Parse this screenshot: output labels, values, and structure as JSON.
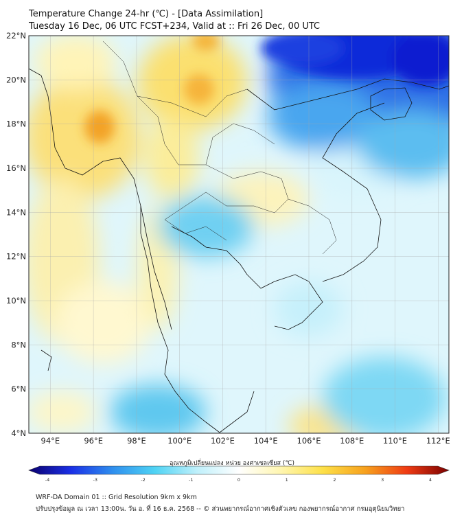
{
  "header": {
    "title_line1": "Temperature Change 24-hr (℃) - [Data Assimilation]",
    "title_line2": "Tuesday 16 Dec, 06 UTC FCST+234, Valid at :: Fri 26 Dec, 00 UTC"
  },
  "map": {
    "lat_labels": [
      "22°N",
      "20°N",
      "18°N",
      "16°N",
      "14°N",
      "12°N",
      "10°N",
      "8°N",
      "6°N",
      "4°N"
    ],
    "lon_labels": [
      "94°E",
      "96°E",
      "98°E",
      "100°E",
      "102°E",
      "104°E",
      "106°E",
      "108°E",
      "110°E",
      "112°E"
    ],
    "colors": {
      "cold_strong": "#0a1fd6",
      "cold": "#3aa0ee",
      "cool": "#9fe6f6",
      "neutral": "#f2fbff",
      "warm": "#fbeea0",
      "hot": "#f7b52b"
    }
  },
  "colorbar": {
    "title": "อุณหภูมิเปลี่ยนแปลง หน่วย องศาเซลเซียส (℃)",
    "tick_labels": [
      "-4",
      "-3",
      "-2",
      "-1",
      "0",
      "1",
      "2",
      "3",
      "4"
    ],
    "gradient_stops": [
      "#0b006e",
      "#1a2fe6",
      "#2f8fee",
      "#4fd3f4",
      "#bff0fb",
      "#ffffff",
      "#fff6b0",
      "#fde048",
      "#f7a21e",
      "#ef3b13",
      "#7a0000"
    ]
  },
  "footer": {
    "line1": "WRF-DA Domain 01 :: Grid Resolution 9km x 9km",
    "line2": "ปรับปรุงข้อมูล ณ เวลา 13:00น. วัน อ. ที่ 16 ธ.ค. 2568 -- © ส่วนพยากรณ์อากาศเชิงตัวเลข กองพยากรณ์อากาศ กรมอุตุนิยมวิทยา"
  }
}
